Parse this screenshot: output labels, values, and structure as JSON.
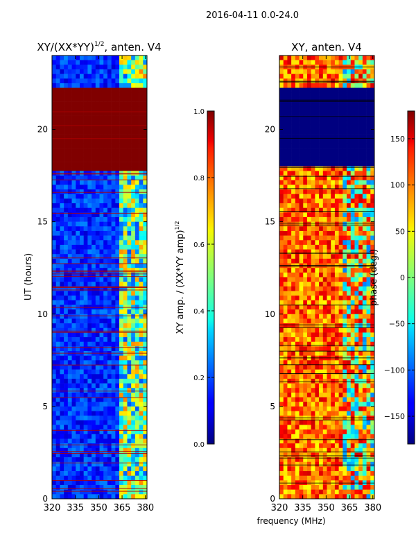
{
  "figure": {
    "suptitle": "2016-04-11 0.0-24.0",
    "xlabel": "frequency (MHz)"
  },
  "chart_data": [
    {
      "type": "heatmap",
      "title_main": "XY/(XX*YY)",
      "title_sup": "1/2",
      "title_tail": ", anten. V4",
      "ylabel": "UT (hours)",
      "xlim": [
        320,
        381
      ],
      "ylim": [
        0,
        24
      ],
      "xticks": [
        320,
        335,
        350,
        365,
        380
      ],
      "yticks": [
        0,
        5,
        10,
        15,
        20
      ],
      "colorbar": {
        "label_main": "XY amp. / (XX*YY amp)",
        "label_sup": "1/2",
        "range": [
          0.0,
          1.0
        ],
        "ticks": [
          "0.0",
          "0.2",
          "0.4",
          "0.6",
          "0.8",
          "1.0"
        ],
        "tick_values": [
          0.0,
          0.2,
          0.4,
          0.6,
          0.8,
          1.0
        ]
      },
      "saturated_band_hours": [
        17.8,
        22.2
      ],
      "saturated_value": 1.0,
      "background_value": 0.15,
      "bright_channel_range_mhz": [
        363,
        380
      ],
      "bright_value": 0.55
    },
    {
      "type": "heatmap",
      "title_main": "XY, anten. V4",
      "ylabel": "phase (deg.)",
      "xlim": [
        320,
        381
      ],
      "ylim": [
        0,
        24
      ],
      "xticks": [
        320,
        335,
        350,
        365,
        380
      ],
      "yticks": [
        0,
        5,
        10,
        15,
        20
      ],
      "colorbar": {
        "label_main": "phase (deg.)",
        "range": [
          -180,
          180
        ],
        "ticks": [
          "−150",
          "−100",
          "−50",
          "0",
          "50",
          "100",
          "150"
        ],
        "tick_values": [
          -150,
          -100,
          -50,
          0,
          50,
          100,
          150
        ]
      },
      "low_band_hours": [
        18.0,
        22.2
      ],
      "low_value": -180,
      "background_value": 80
    }
  ]
}
